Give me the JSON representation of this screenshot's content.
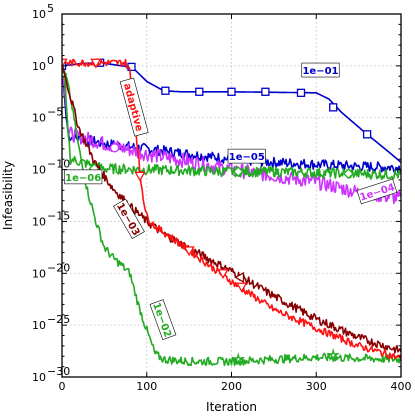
{
  "chart_data": {
    "type": "line",
    "xlabel": "Iteration",
    "ylabel": "Infeasibility",
    "xlim": [
      0,
      400
    ],
    "ylim_log10": [
      -30,
      5
    ],
    "y_scale": "log",
    "grid": true,
    "x_ticks": [
      "0",
      "100",
      "200",
      "300",
      "400"
    ],
    "y_ticks": [
      {
        "base": "10",
        "exp": "5"
      },
      {
        "base": "10",
        "exp": "0"
      },
      {
        "base": "10",
        "exp": "−5"
      },
      {
        "base": "10",
        "exp": "−10"
      },
      {
        "base": "10",
        "exp": "−15"
      },
      {
        "base": "10",
        "exp": "−20"
      },
      {
        "base": "10",
        "exp": "−25"
      },
      {
        "base": "10",
        "exp": "−30"
      }
    ],
    "series": [
      {
        "name": "1e−01",
        "color": "#0000cc",
        "marker": "square",
        "label_at": {
          "x": 305,
          "y_log10": -0.5
        },
        "label_angle": 0,
        "points": [
          [
            0,
            0
          ],
          [
            20,
            0.2
          ],
          [
            45,
            0.3
          ],
          [
            75,
            -0.05
          ],
          [
            85,
            -0.3
          ],
          [
            100,
            -1.5
          ],
          [
            120,
            -2.4
          ],
          [
            140,
            -2.5
          ],
          [
            200,
            -2.5
          ],
          [
            300,
            -2.6
          ],
          [
            315,
            -3.2
          ],
          [
            330,
            -4.5
          ],
          [
            360,
            -6.6
          ],
          [
            390,
            -8.6
          ],
          [
            400,
            -9.3
          ]
        ],
        "markers": [
          [
            0,
            0
          ],
          [
            45,
            0.3
          ],
          [
            82,
            -0.1
          ],
          [
            122,
            -2.4
          ],
          [
            162,
            -2.5
          ],
          [
            200,
            -2.5
          ],
          [
            240,
            -2.5
          ],
          [
            282,
            -2.6
          ],
          [
            320,
            -4.0
          ],
          [
            360,
            -6.6
          ]
        ]
      },
      {
        "name": "1e−05",
        "color": "#0000cc",
        "marker": "circle",
        "label_at": {
          "x": 218,
          "y_log10": -8.8
        },
        "label_angle": 0,
        "points": [
          [
            0,
            0
          ],
          [
            5,
            -5
          ],
          [
            8,
            -6.8
          ],
          [
            50,
            -7.5
          ],
          [
            100,
            -8
          ],
          [
            150,
            -8.5
          ],
          [
            200,
            -9
          ],
          [
            250,
            -9.3
          ],
          [
            300,
            -9.5
          ],
          [
            350,
            -9.7
          ],
          [
            400,
            -9.8
          ]
        ],
        "noise": 0.5
      },
      {
        "name": "1e−04",
        "color": "#cc33ff",
        "marker": "circle",
        "label_at": {
          "x": 372,
          "y_log10": -12.2
        },
        "label_angle": -18,
        "points": [
          [
            0,
            0
          ],
          [
            5,
            -4
          ],
          [
            8,
            -6.5
          ],
          [
            50,
            -7.5
          ],
          [
            100,
            -8.5
          ],
          [
            150,
            -9.2
          ],
          [
            200,
            -10
          ],
          [
            250,
            -10.6
          ],
          [
            300,
            -11.2
          ],
          [
            350,
            -12.2
          ],
          [
            400,
            -12.8
          ]
        ],
        "noise": 0.7,
        "markers": [
          [
            62,
            -7.9
          ],
          [
            205,
            -10.2
          ]
        ]
      },
      {
        "name": "1e−06",
        "color": "#22aa22",
        "marker": "diamond",
        "label_at": {
          "x": 25,
          "y_log10": -10.8
        },
        "label_angle": 0,
        "points": [
          [
            0,
            -0.8
          ],
          [
            3,
            -0.5
          ],
          [
            6,
            -5
          ],
          [
            10,
            -9
          ],
          [
            50,
            -9.9
          ],
          [
            100,
            -10
          ],
          [
            150,
            -10.1
          ],
          [
            200,
            -10.2
          ],
          [
            250,
            -10.2
          ],
          [
            300,
            -10.3
          ],
          [
            350,
            -10.4
          ],
          [
            400,
            -10.5
          ]
        ],
        "noise": 0.5,
        "markers": [
          [
            0,
            -0.8
          ],
          [
            38,
            -9.9
          ],
          [
            208,
            -10.2
          ],
          [
            338,
            -10.4
          ]
        ]
      },
      {
        "name": "1e−02",
        "color": "#22aa22",
        "marker": "star",
        "label_at": {
          "x": 118,
          "y_log10": -24.5
        },
        "label_angle": 70,
        "points": [
          [
            0,
            -0.5
          ],
          [
            5,
            -1
          ],
          [
            12,
            -4
          ],
          [
            20,
            -8
          ],
          [
            30,
            -12
          ],
          [
            40,
            -15
          ],
          [
            50,
            -17.5
          ],
          [
            60,
            -18.5
          ],
          [
            70,
            -19.2
          ],
          [
            80,
            -20
          ],
          [
            90,
            -23
          ],
          [
            100,
            -25.5
          ],
          [
            110,
            -27.8
          ],
          [
            120,
            -28.3
          ],
          [
            150,
            -28.5
          ],
          [
            200,
            -28.5
          ],
          [
            250,
            -28.3
          ],
          [
            300,
            -28.1
          ],
          [
            350,
            -28.2
          ],
          [
            400,
            -28.3
          ]
        ],
        "noise": 0.4,
        "markers": [
          [
            208,
            -28.3
          ],
          [
            320,
            -27.9
          ]
        ]
      },
      {
        "name": "1e−03",
        "color": "#880000",
        "marker": "triangle-left",
        "label_at": {
          "x": 78,
          "y_log10": -14.8
        },
        "label_angle": 60,
        "points": [
          [
            0,
            0.2
          ],
          [
            10,
            -3
          ],
          [
            20,
            -6
          ],
          [
            40,
            -9.5
          ],
          [
            60,
            -11.8
          ],
          [
            80,
            -13.5
          ],
          [
            100,
            -15
          ],
          [
            120,
            -16.2
          ],
          [
            150,
            -17.6
          ],
          [
            200,
            -19.8
          ],
          [
            250,
            -22.2
          ],
          [
            300,
            -24.4
          ],
          [
            350,
            -26.2
          ],
          [
            400,
            -27.5
          ]
        ],
        "noise": 0.4,
        "markers": [
          [
            210,
            -20.4
          ]
        ]
      },
      {
        "name": "adaptive",
        "color": "#ff1111",
        "marker": "triangle-down",
        "label_at": {
          "x": 84,
          "y_log10": -4
        },
        "label_angle": 75,
        "points": [
          [
            0,
            0.3
          ],
          [
            75,
            0.3
          ],
          [
            80,
            -0.5
          ],
          [
            86,
            -5
          ],
          [
            92,
            -10.5
          ],
          [
            97,
            -13.2
          ],
          [
            100,
            -14.5
          ],
          [
            110,
            -15.5
          ],
          [
            130,
            -16.6
          ],
          [
            150,
            -17.8
          ],
          [
            200,
            -20.8
          ],
          [
            250,
            -23.5
          ],
          [
            300,
            -25.3
          ],
          [
            350,
            -27
          ],
          [
            400,
            -28.2
          ]
        ],
        "noise": 0.35,
        "markers": [
          [
            0,
            0.3
          ],
          [
            40,
            0.3
          ],
          [
            92,
            -10.6
          ],
          [
            150,
            -17.8
          ],
          [
            190,
            -20.0
          ],
          [
            212,
            -21.3
          ]
        ]
      }
    ]
  }
}
